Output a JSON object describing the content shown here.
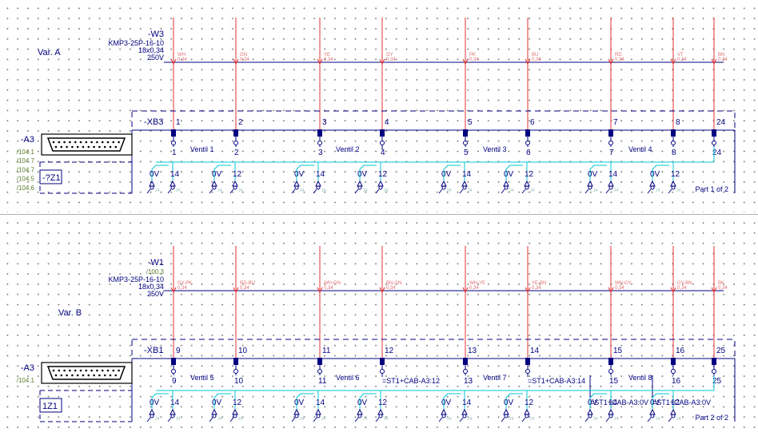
{
  "colors": {
    "wire": "#e03030",
    "bus": "#000080",
    "cyan": "#00c8d8",
    "green": "#5a7a2a"
  },
  "sections": [
    {
      "variant": "Var. A",
      "cable": {
        "name": "-W3",
        "ref": "",
        "type": "KMP3-25P-16-10",
        "section": "18x0,34",
        "voltage": "250V"
      },
      "strip": "-XB3",
      "device": {
        "name": "-A3",
        "refs": [
          "/104.1",
          "/104.7",
          "/104.7",
          "/104.5",
          "/104.6"
        ],
        "box": "-?Z1"
      },
      "part": "Part 1 of 2",
      "terminals": [
        "1",
        "2",
        "3",
        "4",
        "5",
        "6",
        "7",
        "8",
        "24"
      ],
      "lower_labels": [
        "1",
        "2",
        "3",
        "4",
        "5",
        "6",
        "7",
        "8",
        "24"
      ],
      "wire_colors": [
        "WH",
        "GN",
        "YE",
        "GY",
        "PK",
        "BU",
        "RD",
        "VT",
        "BN"
      ],
      "valves": [
        "Ventil 1",
        "Ventil 2",
        "Ventil 3",
        "Ventil 4"
      ],
      "pins": [
        "0V",
        "14",
        "0V",
        "12",
        "0V",
        "14",
        "0V",
        "12",
        "0V",
        "14",
        "0V",
        "12",
        "0V",
        "14",
        "0V",
        "12"
      ],
      "extra": []
    },
    {
      "variant": "Var. B",
      "cable": {
        "name": "-W1",
        "ref": "/100.3",
        "type": "KMP3-25P-16-10",
        "section": "18x0,34",
        "voltage": "250V"
      },
      "strip": "-XB1",
      "device": {
        "name": "-A3",
        "refs": [
          "/104.1"
        ],
        "box": "1Z1"
      },
      "part": "Part 2 of 2",
      "terminals": [
        "9",
        "10",
        "11",
        "12",
        "13",
        "14",
        "15",
        "16",
        "25"
      ],
      "lower_labels": [
        "9",
        "10",
        "11",
        "",
        "13",
        "",
        "15",
        "16",
        "25"
      ],
      "wire_colors": [
        "GY-PK",
        "RD-BU",
        "WH-GN",
        "BN-GN",
        "WH-YE",
        "YE-BN",
        "WH-GY",
        "GY-BN",
        "BK"
      ],
      "valves": [
        "Ventil 5",
        "Ventil 6",
        "Ventil 7",
        "Ventil 8"
      ],
      "pins": [
        "0V",
        "14",
        "0V",
        "12",
        "0V",
        "14",
        "0V",
        "12",
        "0V",
        "14",
        "0V",
        "12",
        "0V",
        "14",
        "0V",
        "12"
      ],
      "extra": [
        "=ST1+CAB-A3:12",
        "=ST1+CAB-A3:14",
        "=ST1+CAB-A3:0V",
        "=ST1+CAB-A3:0V"
      ]
    }
  ]
}
